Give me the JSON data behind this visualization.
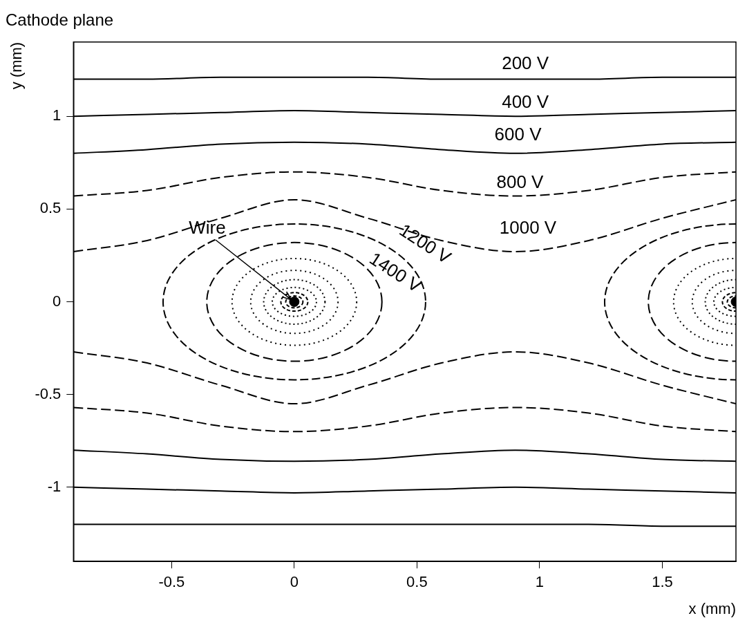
{
  "chart_data": {
    "type": "line",
    "title": "Cathode plane",
    "xlabel": "x (mm)",
    "ylabel": "y (mm)",
    "xlim": [
      -0.9,
      1.8
    ],
    "ylim": [
      -1.4,
      1.4
    ],
    "xticks": [
      -0.5,
      0,
      0.5,
      1,
      1.5
    ],
    "yticks": [
      -1,
      -0.5,
      0,
      0.5,
      1
    ],
    "grid": false,
    "legend": false,
    "marker": "none",
    "series": [
      {
        "color": "#000000",
        "line_style": "solid",
        "x": [
          -0.9,
          -0.6,
          -0.3,
          0,
          0.3,
          0.6,
          0.9,
          1.2,
          1.5,
          1.8
        ],
        "values": [
          1.2,
          1.2,
          1.21,
          1.21,
          1.21,
          1.2,
          1.2,
          1.2,
          1.21,
          1.21
        ]
      },
      {
        "color": "#000000",
        "line_style": "solid",
        "x": [
          -0.9,
          -0.6,
          -0.3,
          0,
          0.3,
          0.6,
          0.9,
          1.2,
          1.5,
          1.8
        ],
        "values": [
          1.0,
          1.01,
          1.02,
          1.03,
          1.02,
          1.01,
          1.0,
          1.01,
          1.02,
          1.03
        ]
      },
      {
        "color": "#000000",
        "line_style": "solid",
        "x": [
          -0.9,
          -0.6,
          -0.3,
          0,
          0.3,
          0.6,
          0.9,
          1.2,
          1.5,
          1.8
        ],
        "values": [
          0.8,
          0.82,
          0.85,
          0.86,
          0.85,
          0.82,
          0.8,
          0.82,
          0.85,
          0.86
        ]
      },
      {
        "color": "#000000",
        "line_style": "dashed",
        "x": [
          -0.9,
          -0.6,
          -0.3,
          0,
          0.3,
          0.6,
          0.9,
          1.2,
          1.5,
          1.8
        ],
        "values": [
          0.57,
          0.6,
          0.67,
          0.7,
          0.67,
          0.6,
          0.57,
          0.6,
          0.67,
          0.7
        ]
      },
      {
        "color": "#000000",
        "line_style": "dashed",
        "x": [
          -0.9,
          -0.6,
          -0.3,
          0,
          0.3,
          0.6,
          0.9,
          1.2,
          1.5,
          1.8
        ],
        "values": [
          0.27,
          0.33,
          0.45,
          0.55,
          0.45,
          0.33,
          0.27,
          0.33,
          0.45,
          0.55
        ]
      },
      {
        "color": "#000000",
        "line_style": "dashed",
        "x": [
          -0.9,
          -0.6,
          -0.3,
          0,
          0.3,
          0.6,
          0.9,
          1.2,
          1.5,
          1.8
        ],
        "values": [
          -0.27,
          -0.33,
          -0.45,
          -0.55,
          -0.45,
          -0.33,
          -0.27,
          -0.33,
          -0.45,
          -0.55
        ]
      },
      {
        "color": "#000000",
        "line_style": "dashed",
        "x": [
          -0.9,
          -0.6,
          -0.3,
          0,
          0.3,
          0.6,
          0.9,
          1.2,
          1.5,
          1.8
        ],
        "values": [
          -0.57,
          -0.6,
          -0.67,
          -0.7,
          -0.67,
          -0.6,
          -0.57,
          -0.6,
          -0.67,
          -0.7
        ]
      },
      {
        "color": "#000000",
        "line_style": "solid",
        "x": [
          -0.9,
          -0.6,
          -0.3,
          0,
          0.3,
          0.6,
          0.9,
          1.2,
          1.5,
          1.8
        ],
        "values": [
          -0.8,
          -0.82,
          -0.85,
          -0.86,
          -0.85,
          -0.82,
          -0.8,
          -0.82,
          -0.85,
          -0.86
        ]
      },
      {
        "color": "#000000",
        "line_style": "solid",
        "x": [
          -0.9,
          -0.6,
          -0.3,
          0,
          0.3,
          0.6,
          0.9,
          1.2,
          1.5,
          1.8
        ],
        "values": [
          -1.0,
          -1.01,
          -1.02,
          -1.03,
          -1.02,
          -1.01,
          -1.0,
          -1.01,
          -1.02,
          -1.03
        ]
      },
      {
        "color": "#000000",
        "line_style": "solid",
        "x": [
          -0.9,
          -0.6,
          -0.3,
          0,
          0.3,
          0.6,
          0.9,
          1.2,
          1.5,
          1.8
        ],
        "values": [
          -1.2,
          -1.2,
          -1.2,
          -1.2,
          -1.2,
          -1.2,
          -1.2,
          -1.2,
          -1.21,
          -1.21
        ]
      },
      {
        "type": "scatter",
        "color": "#000000",
        "marker": "circle",
        "x": [
          0,
          1.8
        ],
        "values": [
          0,
          0
        ]
      }
    ],
    "annotations": [
      "200 V",
      "400 V",
      "600 V",
      "800 V",
      "1000 V",
      "1200 V",
      "1400 V",
      {
        "text": "Wire",
        "x": 0,
        "y": 0
      }
    ]
  }
}
